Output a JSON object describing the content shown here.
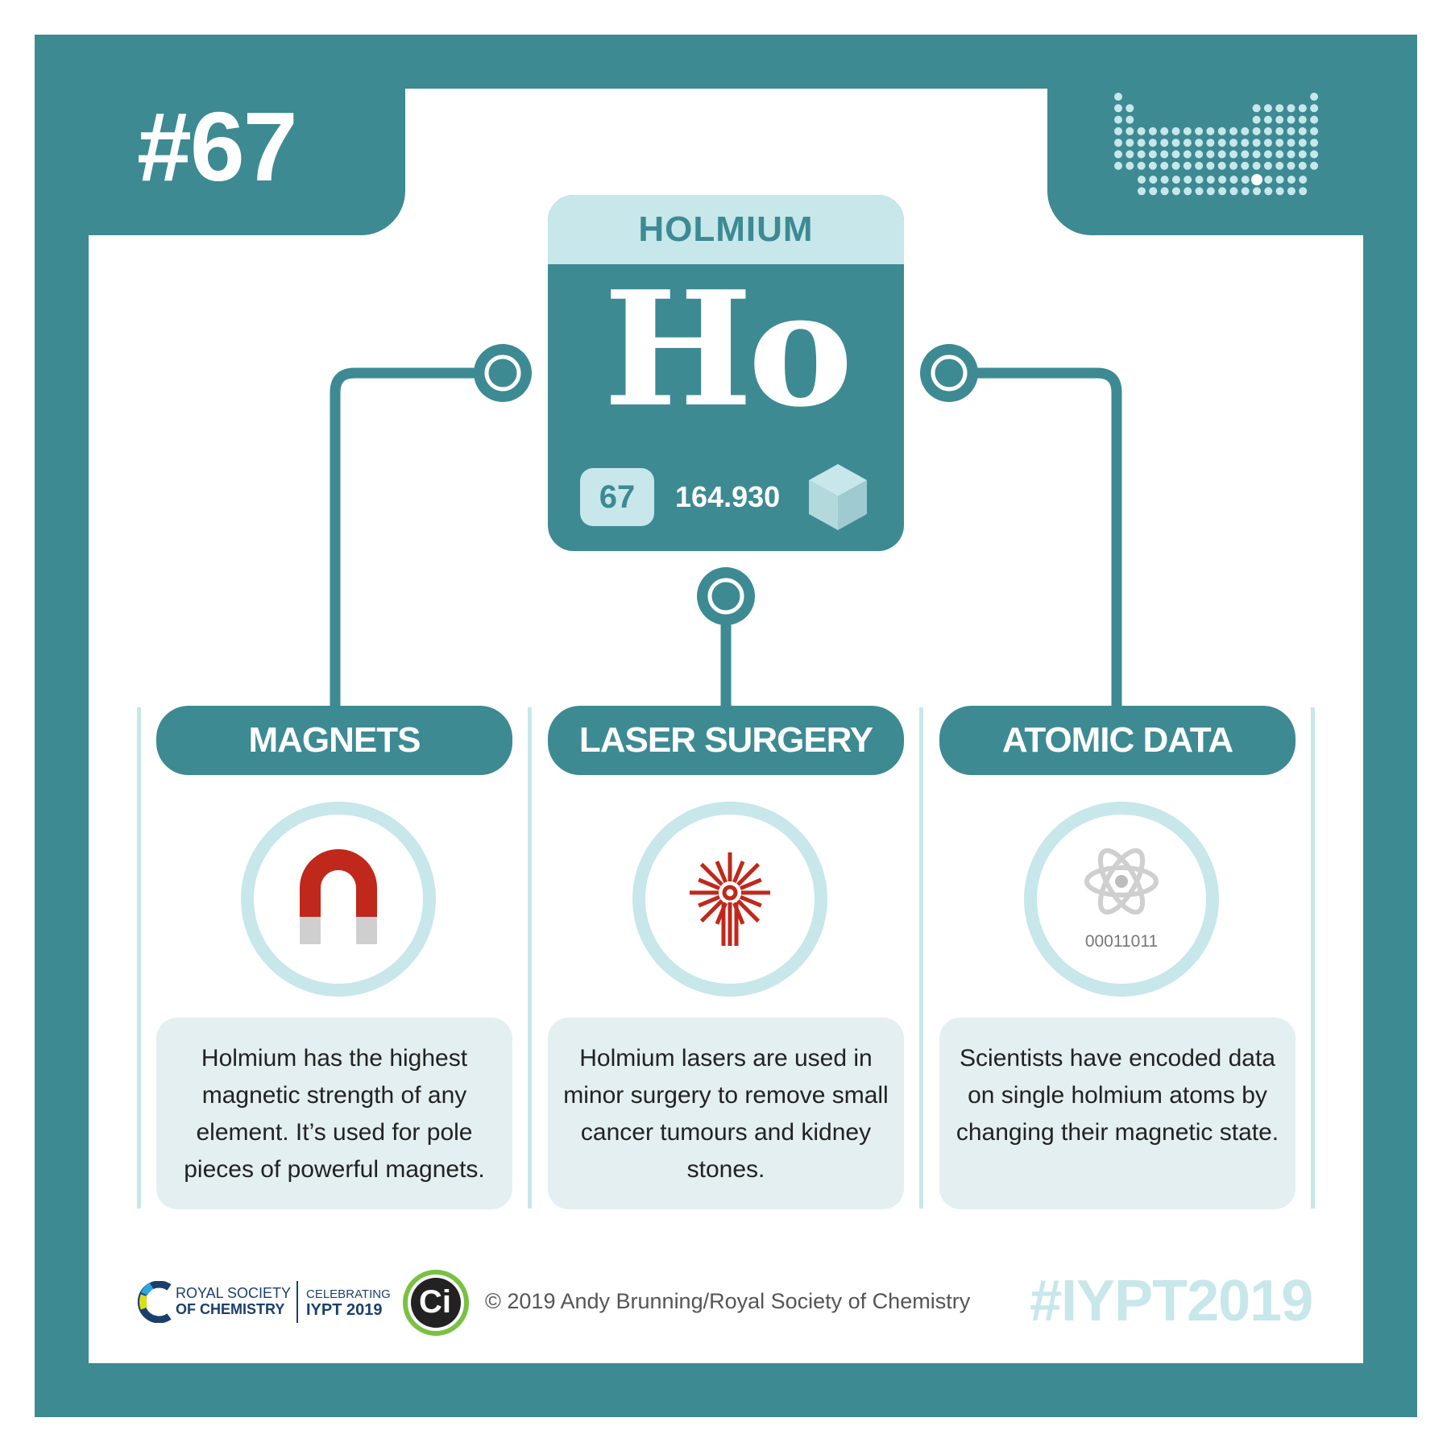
{
  "header": {
    "number": "#67"
  },
  "element": {
    "name": "HOLMIUM",
    "symbol": "Ho",
    "atomic_number": "67",
    "atomic_mass": "164.930"
  },
  "sections": [
    {
      "title": "MAGNETS",
      "icon": "magnet-icon",
      "text": "Holmium has the highest magnetic strength of any element. It’s used for pole pieces of powerful magnets."
    },
    {
      "title": "LASER SURGERY",
      "icon": "laser-icon",
      "text": "Holmium lasers are used in minor surgery to remove small cancer tumours and kidney stones."
    },
    {
      "title": "ATOMIC DATA",
      "icon": "atom-icon",
      "binary": "00011011",
      "text": "Scientists have encoded data on single holmium atoms by changing their magnetic state."
    }
  ],
  "footer": {
    "rsc_line1": "ROYAL SOCIETY",
    "rsc_line2": "OF CHEMISTRY",
    "iypt_line1": "CELEBRATING",
    "iypt_line2": "IYPT 2019",
    "ci_label": "Ci",
    "copyright": "© 2019 Andy Brunning/Royal Society of Chemistry",
    "hashtag": "#IYPT2019"
  },
  "colors": {
    "teal": "#3d8a93",
    "light_teal": "#c7e7ea",
    "panel_grey": "#e4eff1",
    "icon_red": "#c0281c"
  }
}
